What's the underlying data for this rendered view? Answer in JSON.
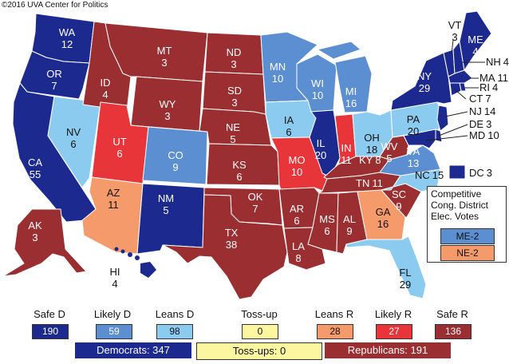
{
  "copyright": "©2016 UVA Center for Politics",
  "colors": {
    "safe_d": "#1c2a8f",
    "likely_d": "#5b8fd1",
    "leans_d": "#8ccbf0",
    "tossup": "#fdf6a0",
    "leans_r": "#f59a6a",
    "likely_r": "#e8353a",
    "safe_r": "#9b2e30",
    "border": "#ffffff"
  },
  "states": [
    {
      "abbr": "WA",
      "votes": "12"
    },
    {
      "abbr": "OR",
      "votes": "7"
    },
    {
      "abbr": "CA",
      "votes": "55"
    },
    {
      "abbr": "NV",
      "votes": "6"
    },
    {
      "abbr": "ID",
      "votes": "4"
    },
    {
      "abbr": "MT",
      "votes": "3"
    },
    {
      "abbr": "WY",
      "votes": "3"
    },
    {
      "abbr": "UT",
      "votes": "6"
    },
    {
      "abbr": "CO",
      "votes": "9"
    },
    {
      "abbr": "AZ",
      "votes": "11"
    },
    {
      "abbr": "NM",
      "votes": "5"
    },
    {
      "abbr": "ND",
      "votes": "3"
    },
    {
      "abbr": "SD",
      "votes": "3"
    },
    {
      "abbr": "NE",
      "votes": "5"
    },
    {
      "abbr": "KS",
      "votes": "6"
    },
    {
      "abbr": "OK",
      "votes": "7"
    },
    {
      "abbr": "TX",
      "votes": "38"
    },
    {
      "abbr": "MN",
      "votes": "10"
    },
    {
      "abbr": "IA",
      "votes": "6"
    },
    {
      "abbr": "MO",
      "votes": "10"
    },
    {
      "abbr": "AR",
      "votes": "6"
    },
    {
      "abbr": "LA",
      "votes": "8"
    },
    {
      "abbr": "WI",
      "votes": "10"
    },
    {
      "abbr": "IL",
      "votes": "20"
    },
    {
      "abbr": "MI",
      "votes": "16"
    },
    {
      "abbr": "IN",
      "votes": "11"
    },
    {
      "abbr": "OH",
      "votes": "18"
    },
    {
      "abbr": "KY",
      "votes": "8"
    },
    {
      "abbr": "TN",
      "votes": "11"
    },
    {
      "abbr": "MS",
      "votes": "6"
    },
    {
      "abbr": "AL",
      "votes": "9"
    },
    {
      "abbr": "GA",
      "votes": "16"
    },
    {
      "abbr": "FL",
      "votes": "29"
    },
    {
      "abbr": "SC",
      "votes": "9"
    },
    {
      "abbr": "NC",
      "votes": "15"
    },
    {
      "abbr": "VA",
      "votes": "13"
    },
    {
      "abbr": "WV",
      "votes": "5"
    },
    {
      "abbr": "PA",
      "votes": "20"
    },
    {
      "abbr": "NY",
      "votes": "29"
    },
    {
      "abbr": "VT",
      "votes": "3"
    },
    {
      "abbr": "NH",
      "votes": "4"
    },
    {
      "abbr": "ME",
      "votes": "4"
    },
    {
      "abbr": "MA",
      "votes": "11"
    },
    {
      "abbr": "RI",
      "votes": "4"
    },
    {
      "abbr": "CT",
      "votes": "7"
    },
    {
      "abbr": "NJ",
      "votes": "14"
    },
    {
      "abbr": "DE",
      "votes": "3"
    },
    {
      "abbr": "MD",
      "votes": "10"
    },
    {
      "abbr": "DC",
      "votes": "3"
    },
    {
      "abbr": "AK",
      "votes": "3"
    },
    {
      "abbr": "HI",
      "votes": "4"
    }
  ],
  "competitive": {
    "title_lines": [
      "Competitive",
      "Cong. District",
      "Elec. Votes"
    ],
    "items": [
      {
        "label": "ME-2",
        "rating": "likely_d"
      },
      {
        "label": "NE-2",
        "rating": "leans_r"
      }
    ]
  },
  "legend": {
    "categories": [
      {
        "key": "safe_d",
        "label": "Safe D",
        "value": "190"
      },
      {
        "key": "likely_d",
        "label": "Likely D",
        "value": "59"
      },
      {
        "key": "leans_d",
        "label": "Leans D",
        "value": "98"
      },
      {
        "key": "tossup",
        "label": "Toss-up",
        "value": "0"
      },
      {
        "key": "leans_r",
        "label": "Leans R",
        "value": "28"
      },
      {
        "key": "likely_r",
        "label": "Likely R",
        "value": "27"
      },
      {
        "key": "safe_r",
        "label": "Safe R",
        "value": "136"
      }
    ],
    "totals": {
      "democrats": "Democrats: 347",
      "tossups": "Toss-ups: 0",
      "republicans": "Republicans: 191"
    }
  }
}
